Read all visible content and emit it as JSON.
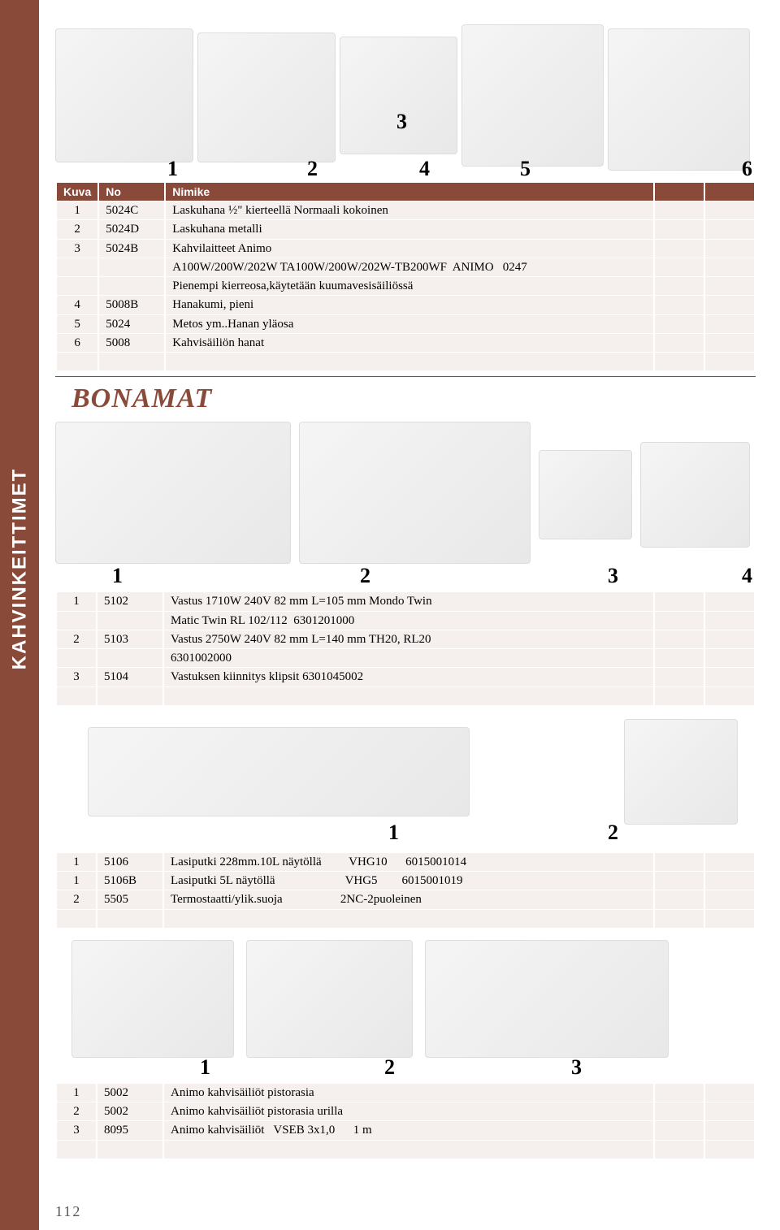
{
  "sidebar_label": "KAHVINKEITTIMET",
  "page_number": "112",
  "header": {
    "kuva": "Kuva",
    "no": "No",
    "nimike": "Nimike"
  },
  "brand2": "BONAMAT",
  "images1": {
    "n1": "1",
    "n2": "2",
    "n3": "3",
    "n4": "4",
    "n5": "5",
    "n6": "6"
  },
  "images2": {
    "n1": "1",
    "n2": "2",
    "n3": "3",
    "n4": "4"
  },
  "images3": {
    "n1": "1",
    "n2": "2"
  },
  "images4": {
    "n1": "1",
    "n2": "2",
    "n3": "3"
  },
  "table1": {
    "rows": [
      {
        "kuva": "1",
        "no": "5024C",
        "nimike": "Laskuhana ½\" kierteellä Normaali kokoinen"
      },
      {
        "kuva": "2",
        "no": "5024D",
        "nimike": "Laskuhana metalli"
      },
      {
        "kuva": "3",
        "no": "5024B",
        "nimike": "Kahvilaitteet Animo"
      },
      {
        "kuva": "",
        "no": "",
        "nimike": "A100W/200W/202W TA100W/200W/202W-TB200WF  ANIMO   0247"
      },
      {
        "kuva": "",
        "no": "",
        "nimike": "Pienempi kierreosa,käytetään kuumavesisäiliössä"
      },
      {
        "kuva": "4",
        "no": "5008B",
        "nimike": "Hanakumi, pieni"
      },
      {
        "kuva": "5",
        "no": "5024",
        "nimike": "Metos ym..Hanan yläosa"
      },
      {
        "kuva": "6",
        "no": "5008",
        "nimike": "Kahvisäiliön hanat"
      }
    ]
  },
  "table2": {
    "rows": [
      {
        "kuva": "1",
        "no": "5102",
        "nimike": "Vastus 1710W 240V 82 mm L=105 mm Mondo Twin"
      },
      {
        "kuva": "",
        "no": "",
        "nimike": "Matic Twin RL 102/112  6301201000"
      },
      {
        "kuva": "2",
        "no": "5103",
        "nimike": "Vastus 2750W 240V 82 mm L=140 mm TH20, RL20"
      },
      {
        "kuva": "",
        "no": "",
        "nimike": "6301002000"
      },
      {
        "kuva": "3",
        "no": "5104",
        "nimike": "Vastuksen kiinnitys klipsit 6301045002"
      }
    ]
  },
  "table3": {
    "rows": [
      {
        "kuva": "1",
        "no": "5106",
        "nimike": "Lasiputki 228mm.10L näytöllä         VHG10      6015001014"
      },
      {
        "kuva": "1",
        "no": "5106B",
        "nimike": "Lasiputki 5L näytöllä                       VHG5        6015001019"
      },
      {
        "kuva": "2",
        "no": "5505",
        "nimike": "Termostaatti/ylik.suoja                   2NC-2puoleinen"
      }
    ]
  },
  "table4": {
    "rows": [
      {
        "kuva": "1",
        "no": "5002",
        "nimike": "Animo kahvisäiliöt pistorasia"
      },
      {
        "kuva": "2",
        "no": "5002",
        "nimike": "Animo kahvisäiliöt pistorasia urilla"
      },
      {
        "kuva": "3",
        "no": "8095",
        "nimike": "Animo kahvisäiliöt   VSEB 3x1,0      1 m"
      }
    ]
  }
}
